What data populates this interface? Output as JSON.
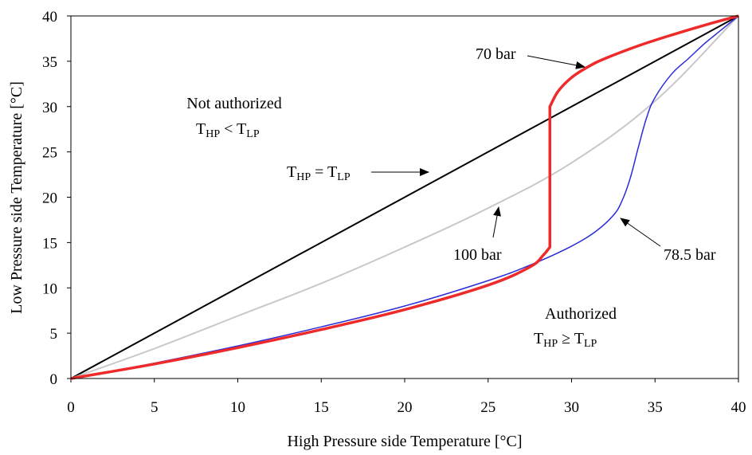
{
  "chart_data": {
    "type": "line",
    "xlabel": "High Pressure side Temperature  [°C]",
    "ylabel": "Low Pressure side Temperature  [°C]",
    "xlim": [
      0,
      40
    ],
    "ylim": [
      0,
      40
    ],
    "xticks": [
      0,
      5,
      10,
      15,
      20,
      25,
      30,
      35,
      40
    ],
    "yticks": [
      0,
      5,
      10,
      15,
      20,
      25,
      30,
      35,
      40
    ],
    "grid": false,
    "series": [
      {
        "name": "T_HP = T_LP",
        "color": "#000000",
        "x": [
          0,
          40
        ],
        "y": [
          0,
          40
        ]
      },
      {
        "name": "100 bar",
        "color": "#c8c8c8",
        "x": [
          0,
          5,
          10,
          15,
          20,
          25,
          30,
          35,
          40
        ],
        "y": [
          0,
          3.3,
          6.9,
          10.5,
          14.5,
          18.8,
          23.8,
          30.6,
          40
        ]
      },
      {
        "name": "78.5 bar",
        "color": "#2b2bd9",
        "x": [
          0,
          5,
          10,
          15,
          20,
          25,
          27.5,
          30,
          31.5,
          32.5,
          33,
          33.5,
          34,
          34.5,
          35,
          36,
          37,
          38,
          39,
          40
        ],
        "y": [
          0,
          1.7,
          3.6,
          5.7,
          8.0,
          10.8,
          12.5,
          14.6,
          16.3,
          18.0,
          19.5,
          22.0,
          25.5,
          28.8,
          31.0,
          33.6,
          35.3,
          37.0,
          38.5,
          40
        ]
      },
      {
        "name": "70 bar",
        "color": "#ee2a2a",
        "x": [
          0,
          5,
          10,
          15,
          20,
          25,
          27.5,
          28.3,
          28.7,
          28.7,
          28.7,
          29.2,
          30,
          31,
          32,
          34,
          36,
          38,
          40
        ],
        "y": [
          0,
          1.6,
          3.4,
          5.4,
          7.6,
          10.3,
          12.3,
          13.6,
          14.5,
          29.0,
          30.0,
          31.7,
          33.2,
          34.4,
          35.3,
          36.7,
          37.9,
          39.0,
          40
        ]
      }
    ],
    "annotations": {
      "not_authorized": "Not authorized",
      "not_authorized_lhs": "T",
      "not_authorized_lhs_sub": "HP",
      "not_authorized_op": " < T",
      "not_authorized_rhs_sub": "LP",
      "eq_lhs": "T",
      "eq_lhs_sub": "HP",
      "eq_op": " = T",
      "eq_rhs_sub": "LP",
      "authorized": "Authorized",
      "authorized_lhs": "T",
      "authorized_lhs_sub": "HP",
      "authorized_op": " ≥ T",
      "authorized_rhs_sub": "LP",
      "label_70": "70 bar",
      "label_100": "100 bar",
      "label_785": "78.5 bar"
    }
  }
}
